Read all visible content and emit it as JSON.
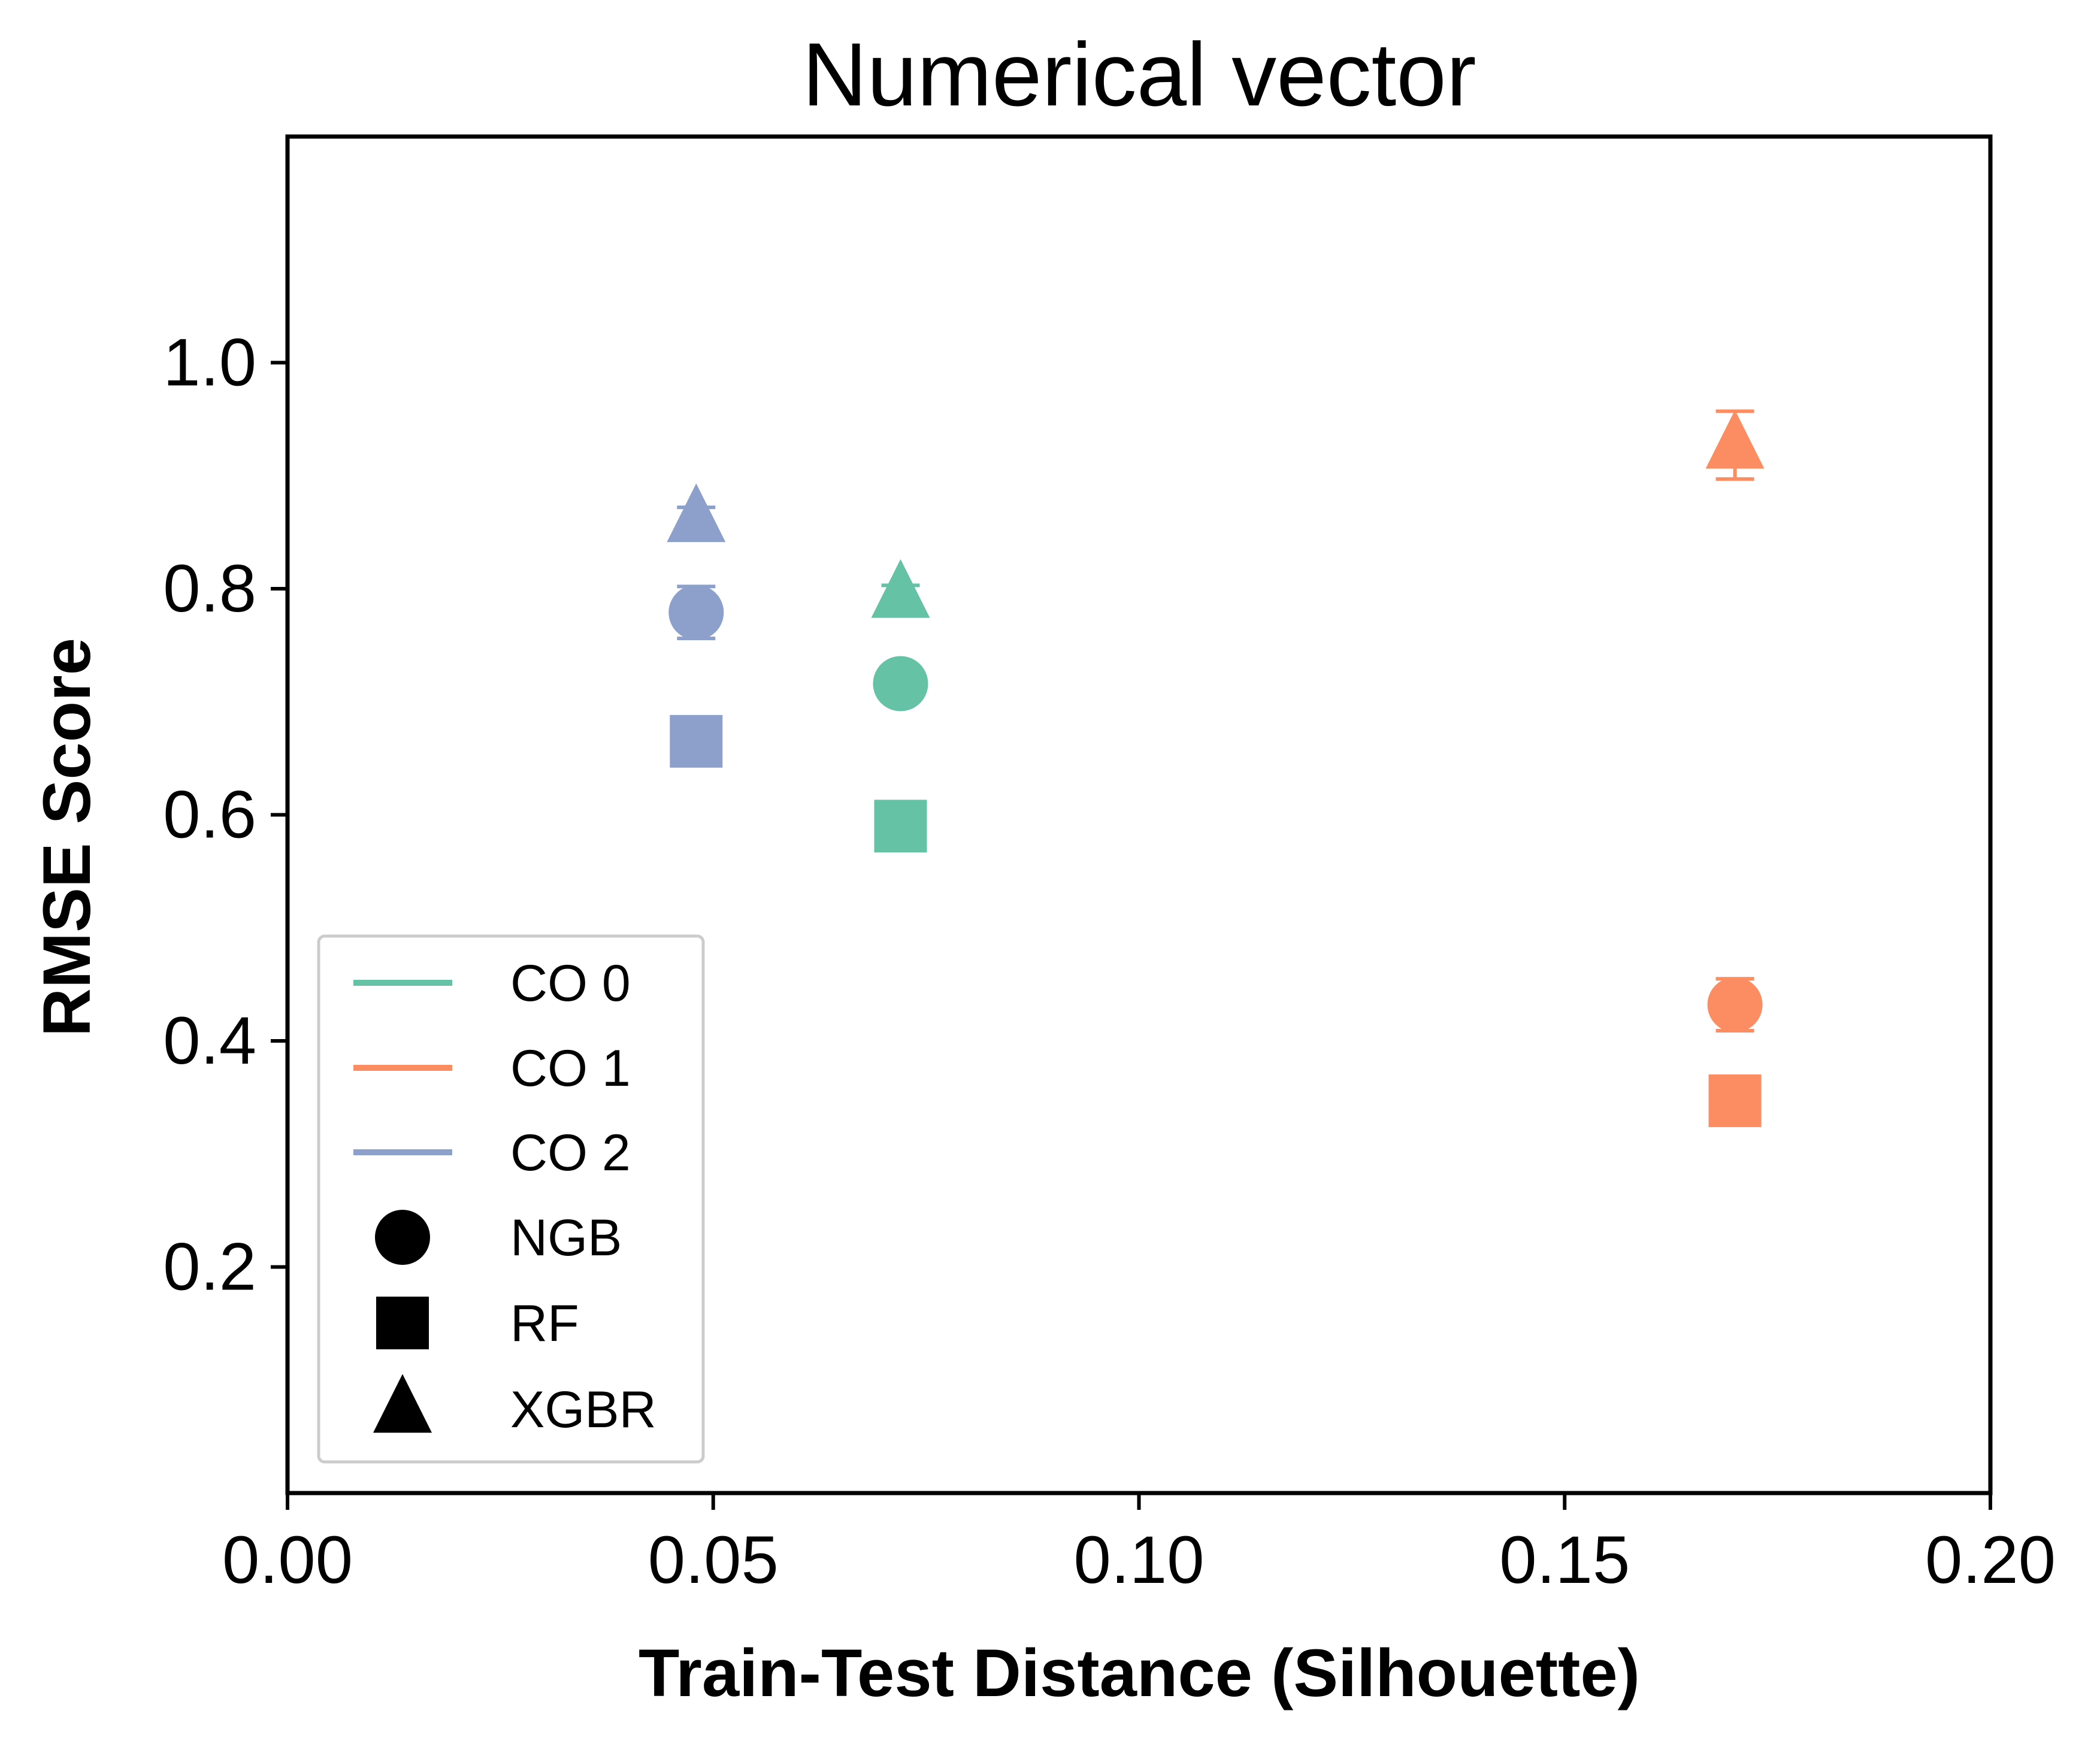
{
  "chart_data": {
    "type": "scatter",
    "title": "Numerical vector",
    "xlabel": "Train-Test Distance (Silhouette)",
    "ylabel": "RMSE Score",
    "xlim": [
      0.0,
      0.2
    ],
    "ylim": [
      0.0,
      1.2
    ],
    "xticks": [
      0.0,
      0.05,
      0.1,
      0.15,
      0.2
    ],
    "xtick_labels": [
      "0.00",
      "0.05",
      "0.10",
      "0.15",
      "0.20"
    ],
    "yticks": [
      0.2,
      0.4,
      0.6,
      0.8,
      1.0
    ],
    "ytick_labels": [
      "0.2",
      "0.4",
      "0.6",
      "0.8",
      "1.0"
    ],
    "grid": false,
    "legend_position": "lower-left",
    "series": [
      {
        "name": "CO 0",
        "color": "#66c2a5",
        "x": 0.072,
        "points": [
          {
            "model": "NGB",
            "marker": "circle",
            "y": 0.716,
            "err": 0.008
          },
          {
            "model": "RF",
            "marker": "square",
            "y": 0.59,
            "err": 0.0
          },
          {
            "model": "XGBR",
            "marker": "triangle",
            "y": 0.795,
            "err": 0.008
          }
        ]
      },
      {
        "name": "CO 1",
        "color": "#fc8d62",
        "x": 0.17,
        "points": [
          {
            "model": "NGB",
            "marker": "circle",
            "y": 0.432,
            "err": 0.023
          },
          {
            "model": "RF",
            "marker": "square",
            "y": 0.347,
            "err": 0.0
          },
          {
            "model": "XGBR",
            "marker": "triangle",
            "y": 0.927,
            "err": 0.03
          }
        ]
      },
      {
        "name": "CO 2",
        "color": "#8da0cb",
        "x": 0.048,
        "points": [
          {
            "model": "NGB",
            "marker": "circle",
            "y": 0.779,
            "err": 0.023
          },
          {
            "model": "RF",
            "marker": "square",
            "y": 0.665,
            "err": 0.0
          },
          {
            "model": "XGBR",
            "marker": "triangle",
            "y": 0.862,
            "err": 0.01
          }
        ]
      }
    ],
    "legend": {
      "colors": [
        {
          "label": "CO 0",
          "color": "#66c2a5"
        },
        {
          "label": "CO 1",
          "color": "#fc8d62"
        },
        {
          "label": "CO 2",
          "color": "#8da0cb"
        }
      ],
      "markers": [
        {
          "label": "NGB",
          "marker": "circle"
        },
        {
          "label": "RF",
          "marker": "square"
        },
        {
          "label": "XGBR",
          "marker": "triangle"
        }
      ]
    }
  }
}
